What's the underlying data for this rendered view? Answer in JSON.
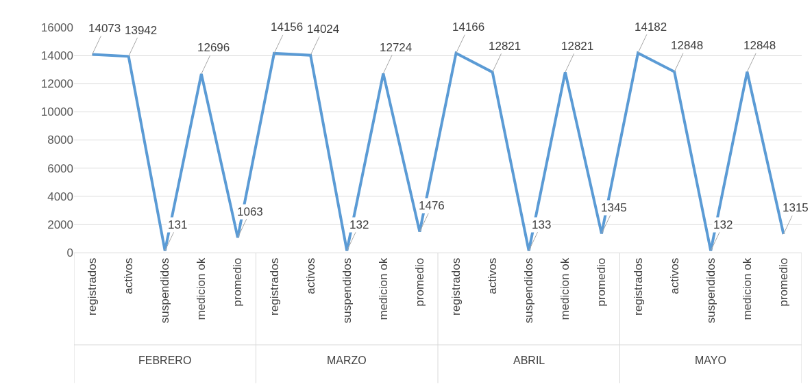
{
  "chart_data": {
    "type": "line",
    "categories": [
      "registrados",
      "activos",
      "suspendidos",
      "medicion ok",
      "promedio",
      "registrados",
      "activos",
      "suspendidos",
      "medicion ok",
      "promedio",
      "registrados",
      "activos",
      "suspendidos",
      "medicion ok",
      "promedio",
      "registrados",
      "activos",
      "suspendidos",
      "medicion ok",
      "promedio"
    ],
    "series": [
      {
        "color": "#5b9bd5",
        "values": [
          14073,
          13942,
          131,
          12696,
          1063,
          14156,
          14024,
          132,
          12724,
          1476,
          14166,
          12821,
          133,
          12821,
          1345,
          14182,
          12848,
          132,
          12848,
          1315
        ]
      }
    ],
    "annotations": [
      "FEBRERO",
      "MARZO",
      "ABRIL",
      "MAYO"
    ],
    "ylim": [
      0,
      16000
    ],
    "yticks": [
      0,
      2000,
      4000,
      6000,
      8000,
      10000,
      12000,
      14000,
      16000
    ],
    "grid": "y",
    "marker": "none",
    "line_style": "solid",
    "data_labels": true
  }
}
